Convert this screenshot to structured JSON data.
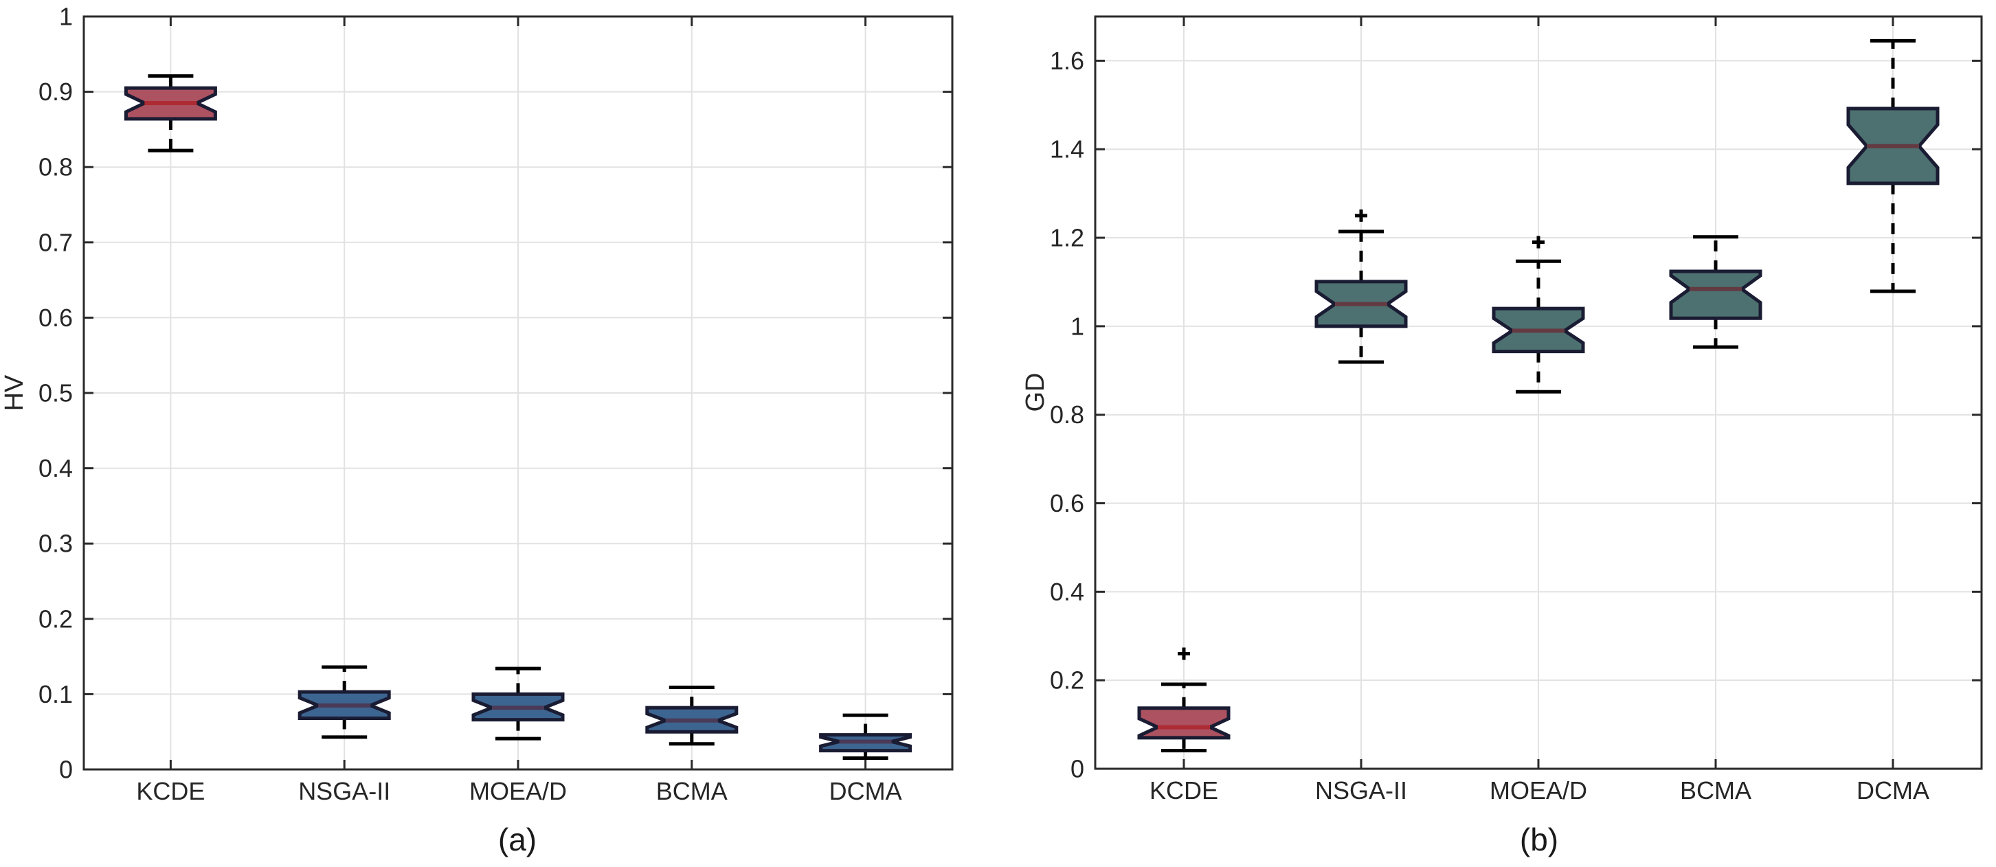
{
  "figure": {
    "background": "#ffffff"
  },
  "style": {
    "grid_color": "#e2e2e2",
    "axis_color": "#2a2a2a",
    "tick_label_color": "#262626",
    "whisker_color": "#000000",
    "box_edge_color": "#1a1c33",
    "red_fill": "#ac5260",
    "red_median": "#ae2b33",
    "blue_fill": "#3d6591",
    "blue_median": "#4a3a58",
    "teal_fill": "#4d7170",
    "teal_median": "#643a42"
  },
  "chart_data": [
    {
      "type": "boxplot",
      "caption": "(a)",
      "ylabel": "HV",
      "xlabel": "",
      "ylim": [
        0,
        1
      ],
      "grid": true,
      "legend": "none",
      "yticks": [
        0,
        0.1,
        0.2,
        0.3,
        0.4,
        0.5,
        0.6,
        0.7,
        0.8,
        0.9,
        1
      ],
      "ytick_labels": [
        "0",
        "0.1",
        "0.2",
        "0.3",
        "0.4",
        "0.5",
        "0.6",
        "0.7",
        "0.8",
        "0.9",
        "1"
      ],
      "categories": [
        "KCDE",
        "NSGA-II",
        "MOEA/D",
        "BCMA",
        "DCMA"
      ],
      "boxes": [
        {
          "category": "KCDE",
          "whisker_low": 0.822,
          "q1": 0.864,
          "median": 0.885,
          "q3": 0.905,
          "whisker_high": 0.921,
          "outliers": [],
          "fill": "#ac5260",
          "median_color": "#ae2b33"
        },
        {
          "category": "NSGA-II",
          "whisker_low": 0.043,
          "q1": 0.068,
          "median": 0.085,
          "q3": 0.103,
          "whisker_high": 0.136,
          "outliers": [],
          "fill": "#3d6591",
          "median_color": "#4a3a58"
        },
        {
          "category": "MOEA/D",
          "whisker_low": 0.041,
          "q1": 0.066,
          "median": 0.082,
          "q3": 0.1,
          "whisker_high": 0.134,
          "outliers": [],
          "fill": "#3d6591",
          "median_color": "#4a3a58"
        },
        {
          "category": "BCMA",
          "whisker_low": 0.034,
          "q1": 0.05,
          "median": 0.065,
          "q3": 0.082,
          "whisker_high": 0.109,
          "outliers": [],
          "fill": "#3d6591",
          "median_color": "#4a3a58"
        },
        {
          "category": "DCMA",
          "whisker_low": 0.015,
          "q1": 0.025,
          "median": 0.037,
          "q3": 0.046,
          "whisker_high": 0.072,
          "outliers": [],
          "fill": "#3d6591",
          "median_color": "#4a3a58"
        }
      ]
    },
    {
      "type": "boxplot",
      "caption": "(b)",
      "ylabel": "GD",
      "xlabel": "",
      "ylim": [
        0,
        1.7
      ],
      "grid": true,
      "legend": "none",
      "yticks": [
        0,
        0.2,
        0.4,
        0.6,
        0.8,
        1,
        1.2,
        1.4,
        1.6
      ],
      "ytick_labels": [
        "0",
        "0.2",
        "0.4",
        "0.6",
        "0.8",
        "1",
        "1.2",
        "1.4",
        "1.6"
      ],
      "categories": [
        "KCDE",
        "NSGA-II",
        "MOEA/D",
        "BCMA",
        "DCMA"
      ],
      "boxes": [
        {
          "category": "KCDE",
          "whisker_low": 0.041,
          "q1": 0.07,
          "median": 0.094,
          "q3": 0.137,
          "whisker_high": 0.191,
          "outliers": [
            0.26
          ],
          "fill": "#ac5260",
          "median_color": "#ae2b33"
        },
        {
          "category": "NSGA-II",
          "whisker_low": 0.919,
          "q1": 1.0,
          "median": 1.05,
          "q3": 1.101,
          "whisker_high": 1.214,
          "outliers": [
            1.25
          ],
          "fill": "#4d7170",
          "median_color": "#643a42"
        },
        {
          "category": "MOEA/D",
          "whisker_low": 0.852,
          "q1": 0.943,
          "median": 0.99,
          "q3": 1.04,
          "whisker_high": 1.147,
          "outliers": [
            1.19
          ],
          "fill": "#4d7170",
          "median_color": "#643a42"
        },
        {
          "category": "BCMA",
          "whisker_low": 0.953,
          "q1": 1.018,
          "median": 1.084,
          "q3": 1.124,
          "whisker_high": 1.202,
          "outliers": [],
          "fill": "#4d7170",
          "median_color": "#643a42"
        },
        {
          "category": "DCMA",
          "whisker_low": 1.079,
          "q1": 1.323,
          "median": 1.407,
          "q3": 1.492,
          "whisker_high": 1.645,
          "outliers": [],
          "fill": "#4d7170",
          "median_color": "#643a42"
        }
      ]
    }
  ]
}
